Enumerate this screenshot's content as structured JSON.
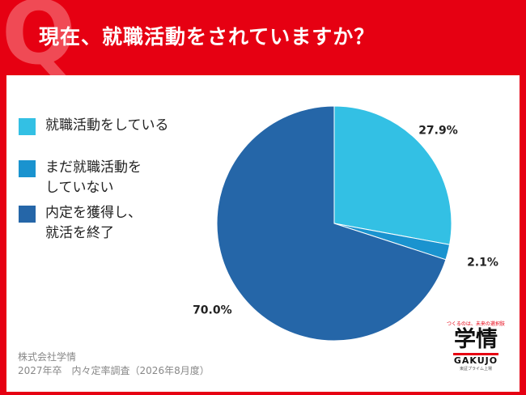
{
  "header": {
    "q_mark": "Q",
    "title": "現在、就職活動をされていますか？"
  },
  "chart_data": {
    "type": "pie",
    "title": "現在、就職活動をされていますか？",
    "slices": [
      {
        "label": "就職活動をしている",
        "value": 27.9,
        "value_label": "27.9%",
        "color": "#33c0e4"
      },
      {
        "label": "まだ就職活動をしていない",
        "value": 2.1,
        "value_label": "2.1%",
        "color": "#1a93cf"
      },
      {
        "label": "内定を獲得し、就活を終了",
        "value": 70.0,
        "value_label": "70.0%",
        "color": "#2566a8"
      }
    ],
    "start_angle_deg": 0,
    "direction": "clockwise",
    "legend_position": "left"
  },
  "legend": {
    "items": [
      {
        "line1": "就職活動をしている",
        "line2": ""
      },
      {
        "line1": "まだ就職活動を",
        "line2": "していない"
      },
      {
        "line1": "内定を獲得し、",
        "line2": "就活を終了"
      }
    ]
  },
  "source": {
    "line1": "株式会社学情",
    "line2": "2027年卒　内々定率調査（2026年8月度）"
  },
  "logo": {
    "tagline": "つくるのは、未来の選択肢",
    "mark": "学情",
    "name": "GAKUJO",
    "sub": "東証プライム上場"
  },
  "colors": {
    "brand_red": "#e60012",
    "q_mark": "#f04a55"
  }
}
